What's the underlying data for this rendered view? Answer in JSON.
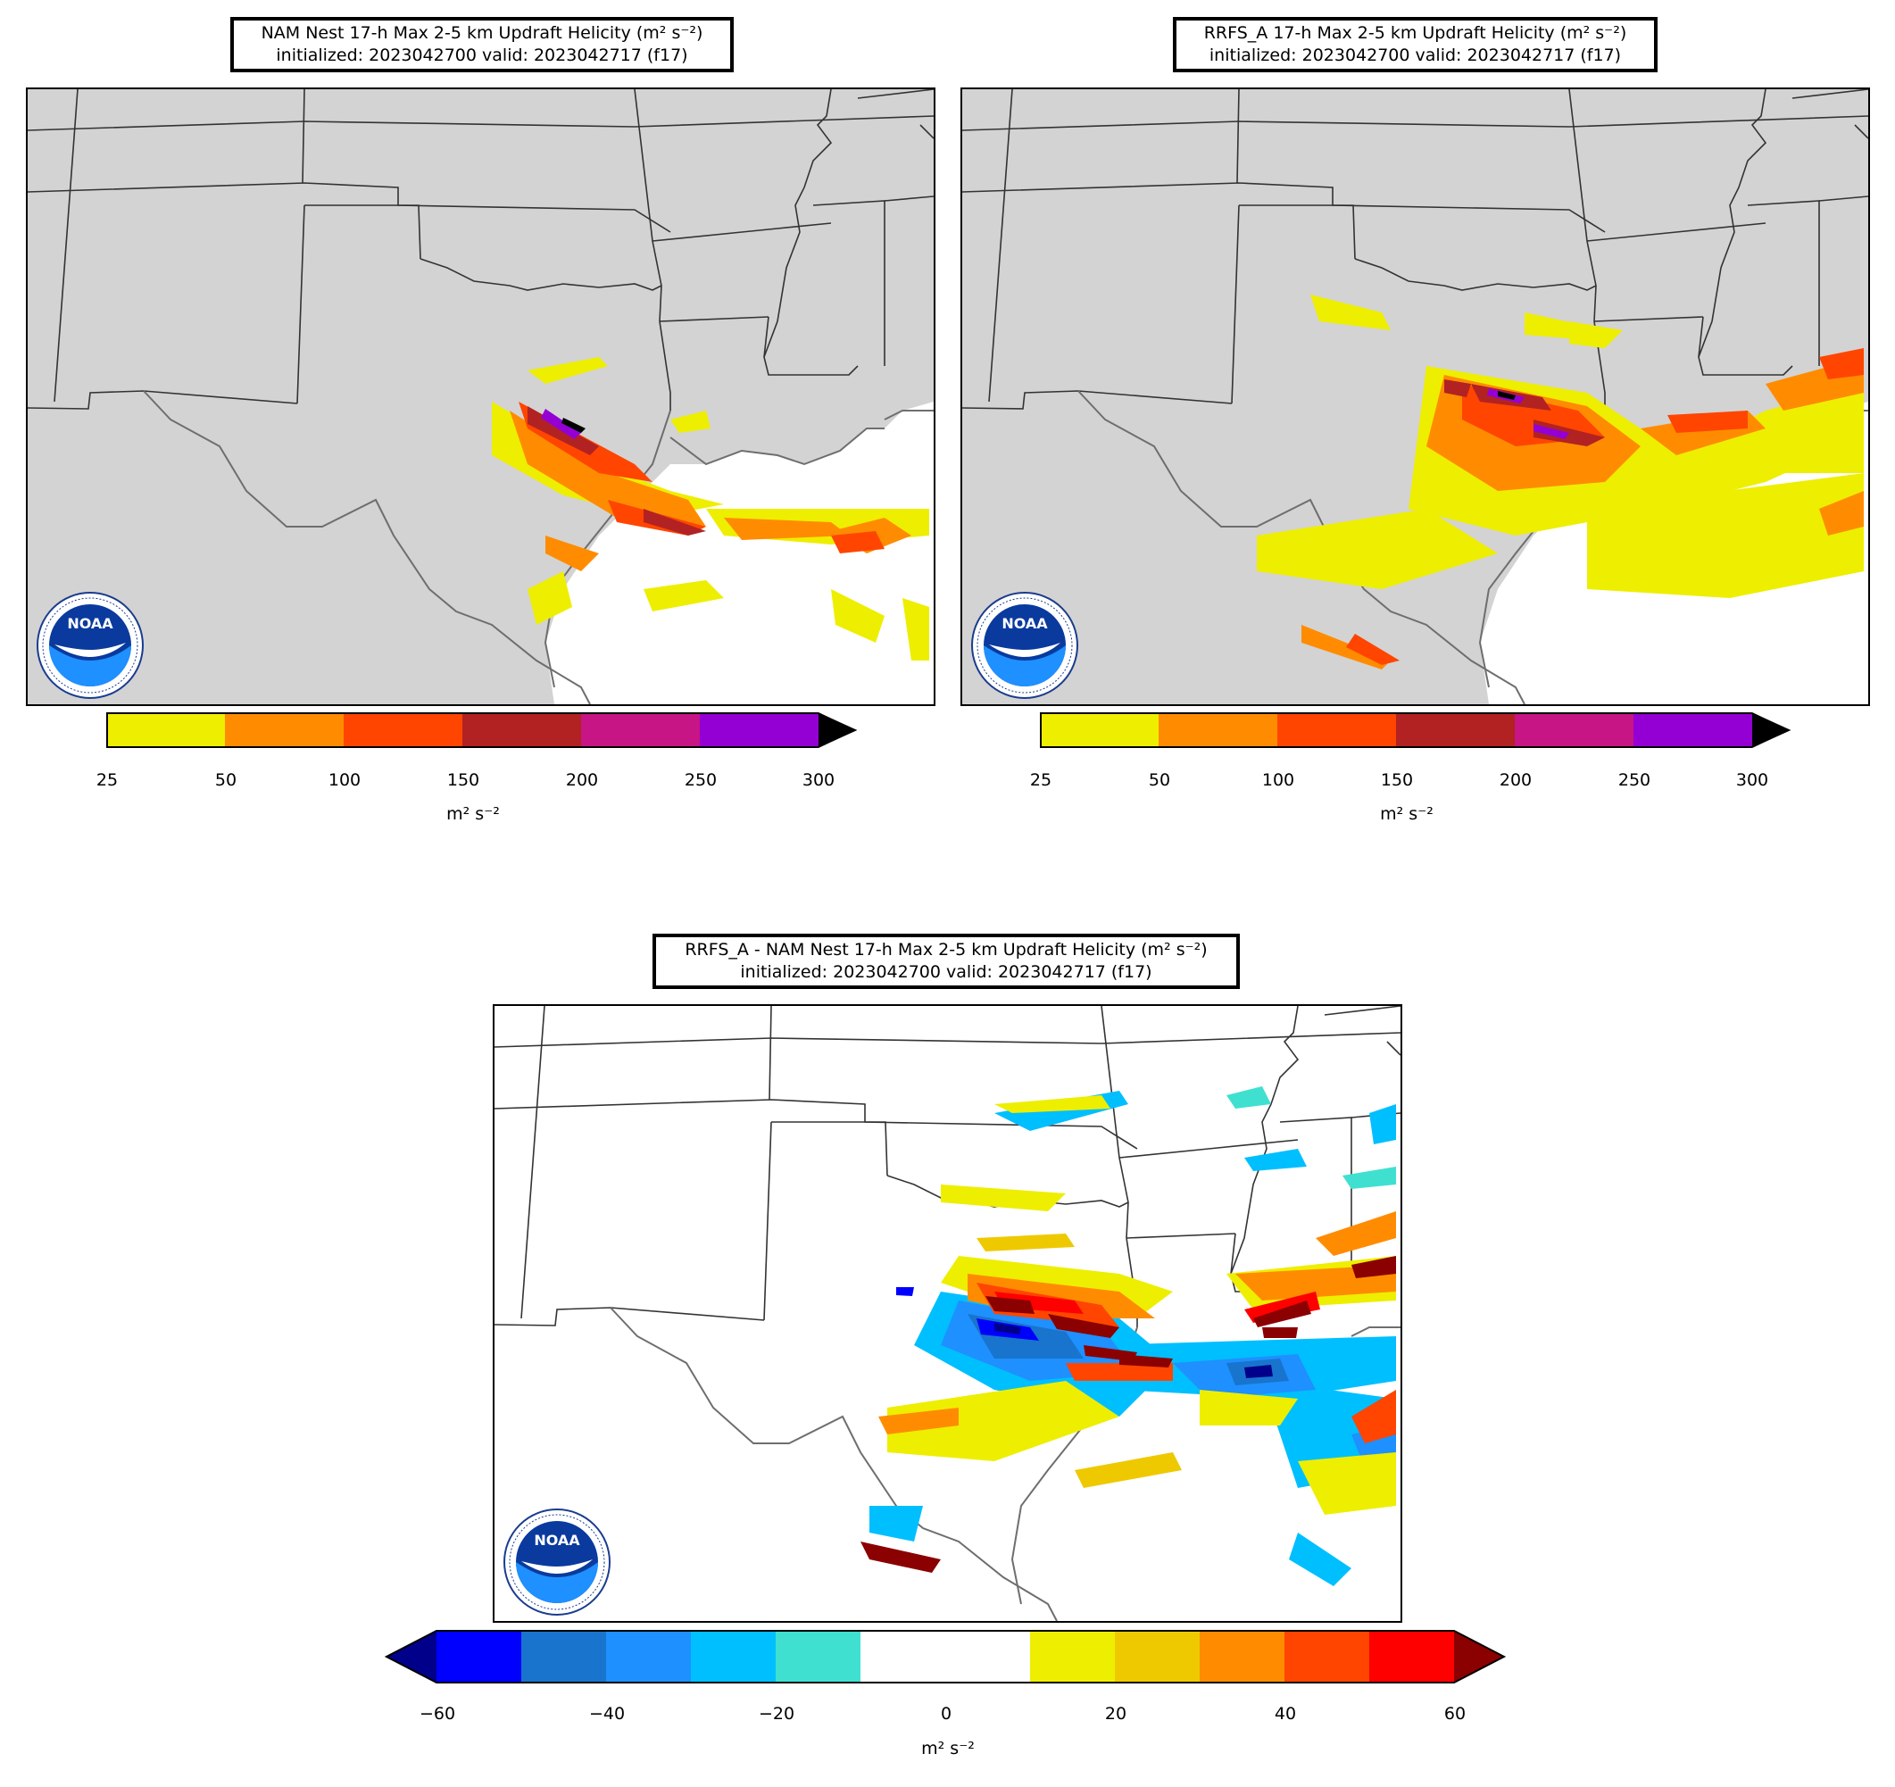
{
  "panels": [
    {
      "title_line1": "NAM Nest 17-h Max 2-5 km Updraft Helicity (m² s⁻²)",
      "title_line2": "initialized: 2023042700 valid: 2023042717 (f17)"
    },
    {
      "title_line1": "RRFS_A 17-h Max 2-5 km Updraft Helicity (m² s⁻²)",
      "title_line2": "initialized: 2023042700 valid: 2023042717 (f17)"
    },
    {
      "title_line1": "RRFS_A - NAM Nest 17-h Max 2-5 km Updraft Helicity (m² s⁻²)",
      "title_line2": "initialized: 2023042700 valid: 2023042717 (f17)"
    }
  ],
  "colorbar_uh": {
    "bounds": [
      "25",
      "50",
      "100",
      "150",
      "200",
      "250",
      "300"
    ],
    "colors": [
      "#eeee00",
      "#ff8c00",
      "#ff4500",
      "#b22222",
      "#c71585",
      "#9400d3"
    ],
    "extend_color": "#000000",
    "unit": "m² s⁻²"
  },
  "colorbar_diff": {
    "ticks": [
      "−60",
      "−40",
      "−20",
      "0",
      "20",
      "40",
      "60"
    ],
    "colors": [
      "#0000ff",
      "#1874cd",
      "#1e90ff",
      "#00bfff",
      "#40e0d0",
      "#ffffff",
      "#ffffff",
      "#eeee00",
      "#eec900",
      "#ff8c00",
      "#ff4500",
      "#ff0000"
    ],
    "extend_low_color": "#00008b",
    "extend_high_color": "#8b0000",
    "unit": "m² s⁻²"
  },
  "logo": {
    "text": "NOAA",
    "ring_text": "NATIONAL OCEANIC AND ATMOSPHERIC ADMINISTRATION · U.S. DEPARTMENT OF COMMERCE"
  },
  "colors": {
    "land": "#d3d3d3",
    "water": "#ffffff",
    "borders": "#333333",
    "coast": "#6e6e6e"
  }
}
